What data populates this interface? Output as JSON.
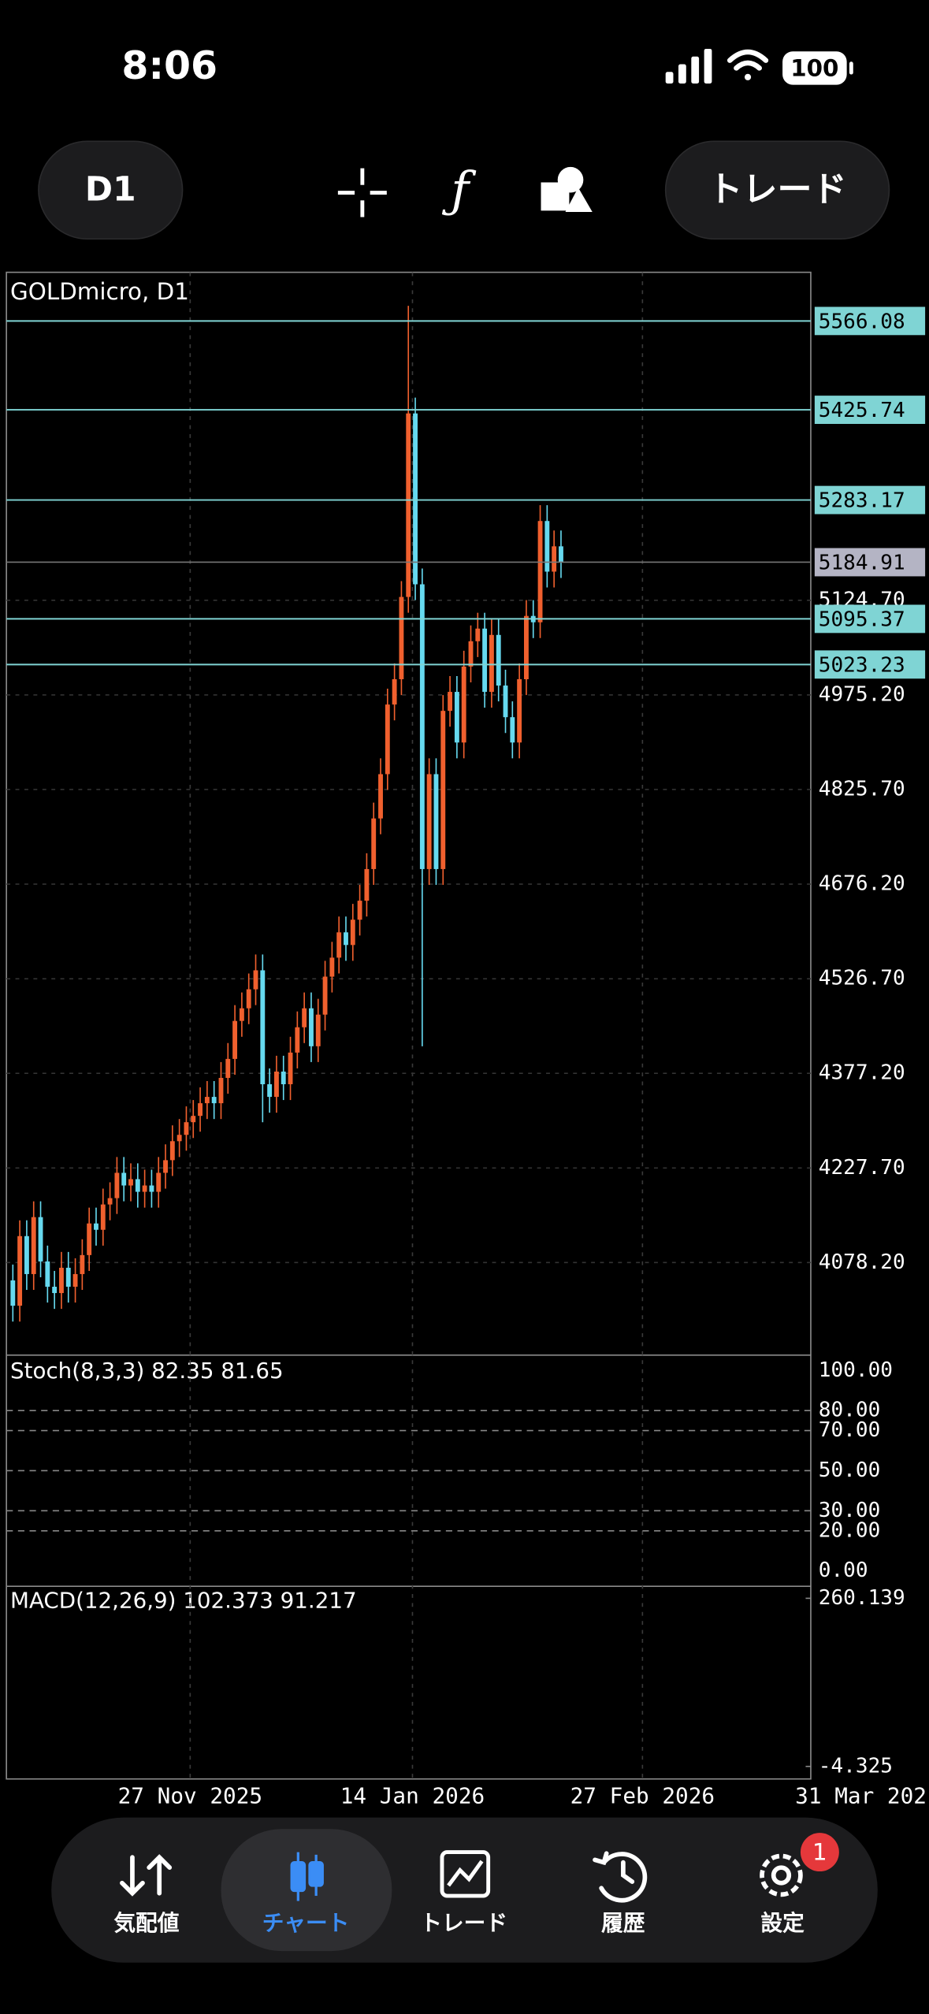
{
  "status_bar": {
    "time": "8:06",
    "battery": "100"
  },
  "toolbar": {
    "timeframe": "D1",
    "trade_button": "トレード"
  },
  "chart_data": {
    "type": "candlestick",
    "title": "GOLDmicro, D1",
    "up_color": "#f0602e",
    "down_color": "#66d9ef",
    "open": [
      4050,
      4010,
      4120,
      4060,
      4150,
      4080,
      4040,
      4030,
      4070,
      4040,
      4060,
      4090,
      4140,
      4130,
      4170,
      4180,
      4220,
      4200,
      4210,
      4190,
      4200,
      4190,
      4220,
      4240,
      4270,
      4280,
      4300,
      4310,
      4330,
      4340,
      4330,
      4370,
      4400,
      4460,
      4480,
      4510,
      4540,
      4360,
      4340,
      4380,
      4360,
      4410,
      4450,
      4480,
      4420,
      4470,
      4530,
      4560,
      4600,
      4580,
      4620,
      4650,
      4700,
      4780,
      4850,
      4960,
      5000,
      5130,
      5420,
      5150,
      4700,
      4850,
      4700,
      4950,
      4980,
      4900,
      5020,
      5060,
      5080,
      4980,
      5070,
      4990,
      4940,
      4900,
      5000,
      5100,
      5090,
      5250,
      5170,
      5210
    ],
    "high": [
      4075,
      4145,
      4145,
      4175,
      4175,
      4105,
      4065,
      4095,
      4095,
      4085,
      4115,
      4165,
      4165,
      4195,
      4205,
      4245,
      4245,
      4235,
      4235,
      4225,
      4225,
      4245,
      4265,
      4295,
      4305,
      4325,
      4335,
      4355,
      4365,
      4365,
      4395,
      4425,
      4485,
      4505,
      4535,
      4565,
      4565,
      4385,
      4405,
      4405,
      4435,
      4475,
      4505,
      4505,
      4495,
      4555,
      4585,
      4625,
      4625,
      4645,
      4675,
      4725,
      4805,
      4875,
      4985,
      5025,
      5155,
      5590,
      5445,
      5175,
      4875,
      4875,
      4975,
      5005,
      5005,
      5045,
      5085,
      5105,
      5105,
      5095,
      5095,
      5015,
      4965,
      5025,
      5125,
      5125,
      5275,
      5275,
      5235,
      5235
    ],
    "low": [
      3985,
      3985,
      4035,
      4035,
      4055,
      4015,
      4005,
      4005,
      4015,
      4015,
      4035,
      4065,
      4105,
      4105,
      4145,
      4155,
      4175,
      4175,
      4165,
      4165,
      4165,
      4165,
      4195,
      4215,
      4245,
      4255,
      4275,
      4285,
      4305,
      4305,
      4305,
      4345,
      4375,
      4435,
      4455,
      4485,
      4300,
      4315,
      4315,
      4335,
      4335,
      4385,
      4425,
      4395,
      4395,
      4445,
      4505,
      4535,
      4555,
      4555,
      4595,
      4625,
      4675,
      4755,
      4825,
      4935,
      4975,
      5105,
      5125,
      4420,
      4675,
      4675,
      4675,
      4925,
      4875,
      4875,
      4995,
      5035,
      4955,
      4955,
      4965,
      4915,
      4875,
      4875,
      4975,
      5065,
      5065,
      5145,
      5145,
      5160
    ],
    "close": [
      4010,
      4120,
      4060,
      4150,
      4080,
      4040,
      4030,
      4070,
      4040,
      4060,
      4090,
      4140,
      4130,
      4170,
      4180,
      4220,
      4200,
      4210,
      4190,
      4200,
      4190,
      4220,
      4240,
      4270,
      4280,
      4300,
      4310,
      4330,
      4340,
      4330,
      4370,
      4400,
      4460,
      4480,
      4510,
      4540,
      4360,
      4340,
      4380,
      4360,
      4410,
      4450,
      4480,
      4420,
      4470,
      4530,
      4560,
      4600,
      4580,
      4620,
      4650,
      4700,
      4780,
      4850,
      4960,
      5000,
      5130,
      5420,
      5150,
      4700,
      4850,
      4700,
      4950,
      4980,
      4900,
      5020,
      5060,
      5080,
      4980,
      5070,
      4990,
      4940,
      4900,
      5000,
      5100,
      5090,
      5250,
      5170,
      5210,
      5185
    ],
    "ylim": [
      3932,
      5643
    ],
    "yticks": [
      {
        "value": 4078.2,
        "label": "4078.20"
      },
      {
        "value": 4227.7,
        "label": "4227.70"
      },
      {
        "value": 4377.2,
        "label": "4377.20"
      },
      {
        "value": 4526.7,
        "label": "4526.70"
      },
      {
        "value": 4676.2,
        "label": "4676.20"
      },
      {
        "value": 4825.7,
        "label": "4825.70"
      },
      {
        "value": 4975.2,
        "label": "4975.20"
      },
      {
        "value": 5124.7,
        "label": "5124.70"
      }
    ],
    "levels": [
      5566.08,
      5425.74,
      5283.17,
      5095.37,
      5023.23
    ],
    "level_color": "#7fd4d4",
    "last_price": 5184.91,
    "last_price_color": "#b4b4c4",
    "x_labels": [
      "27 Nov 2025",
      "14 Jan 2026",
      "27 Feb 2026",
      "31 Mar 202"
    ],
    "grid": true
  },
  "stochastic": {
    "title": "Stoch(8,3,3) 82.35 81.65",
    "ylim": [
      -6.4,
      106.4
    ],
    "yticks": [
      {
        "value": 100,
        "label": "100.00"
      },
      {
        "value": 80,
        "label": "80.00"
      },
      {
        "value": 70,
        "label": "70.00"
      },
      {
        "value": 50,
        "label": "50.00"
      },
      {
        "value": 30,
        "label": "30.00"
      },
      {
        "value": 20,
        "label": "20.00"
      },
      {
        "value": 0,
        "label": "0.00"
      }
    ]
  },
  "macd": {
    "title": "MACD(12,26,9) 102.373 91.217",
    "ylim": [
      -20,
      275
    ],
    "yticks": [
      260.139,
      -4.325
    ]
  },
  "nav": {
    "items": [
      "気配値",
      "チャート",
      "トレード",
      "履歴",
      "設定"
    ],
    "badge": "1"
  }
}
